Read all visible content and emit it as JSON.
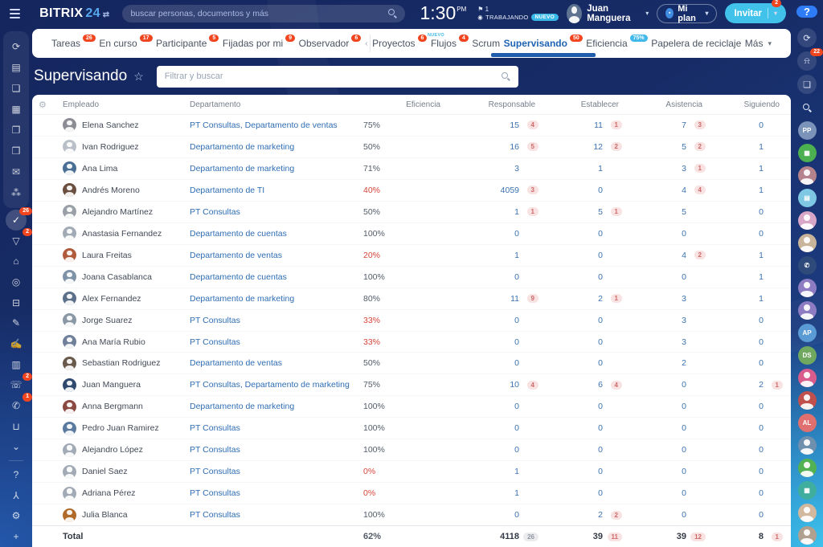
{
  "topbar": {
    "logo_main": "BITRIX",
    "logo_num": "24",
    "logo_switch": "⇄",
    "search_placeholder": "buscar personas, documentos y más",
    "time": "1:30",
    "time_suffix": "PM",
    "flag_icon": "⚑",
    "flag_count": "1",
    "status_icon": "◉",
    "status_text": "TRABAJANDO",
    "status_badge": "NUEVO",
    "user_name": "Juan Manguera",
    "plan_button": "Mi plan",
    "invite_button": "Invitar",
    "invite_badge": "2"
  },
  "colors": {
    "accent_blue": "#1f63b5",
    "badge_red": "#f0451f",
    "badge_teal": "#41b9ea",
    "invite_teal": "#41c2ea",
    "efficiency_red": "#d6453a",
    "link_blue": "#2e6db4"
  },
  "tabs": [
    {
      "label": "Tareas",
      "badge": "26",
      "badge_style": "red"
    },
    {
      "label": "En curso",
      "badge": "17",
      "badge_style": "red"
    },
    {
      "label": "Participante",
      "badge": "5",
      "badge_style": "red"
    },
    {
      "label": "Fijadas por mi",
      "badge": "9",
      "badge_style": "red"
    },
    {
      "label": "Observador",
      "badge": "6",
      "badge_style": "red",
      "chevron": "‹",
      "divider_after": true
    },
    {
      "label": "Proyectos",
      "badge": "6",
      "badge_style": "red"
    },
    {
      "label": "Flujos",
      "badge": "4",
      "badge_style": "red",
      "tag": "NUEVO"
    },
    {
      "label": "Scrum"
    },
    {
      "label": "Supervisando",
      "badge": "50",
      "badge_style": "red",
      "active": true
    },
    {
      "label": "Eficiencia",
      "badge": "75%",
      "badge_style": "teal"
    },
    {
      "label": "Papelera de reciclaje"
    },
    {
      "label": "Más",
      "caret": true
    }
  ],
  "page": {
    "title": "Supervisando",
    "star_icon": "☆",
    "filter_placeholder": "Filtrar y buscar"
  },
  "left_rail": [
    {
      "name": "pulse-icon",
      "glyph": "⟳",
      "group": true
    },
    {
      "name": "feed-icon",
      "glyph": "▤",
      "group": true
    },
    {
      "name": "messenger-icon",
      "glyph": "❏",
      "group": true
    },
    {
      "name": "calendar-icon",
      "glyph": "▦",
      "group": true
    },
    {
      "name": "documents-icon",
      "glyph": "❐",
      "group": true
    },
    {
      "name": "drive-icon",
      "glyph": "❒",
      "group": true
    },
    {
      "name": "mail-icon",
      "glyph": "✉",
      "group": true
    },
    {
      "name": "employees-icon",
      "glyph": "⁂",
      "group": true
    },
    {
      "name": "tasks-icon",
      "glyph": "✓",
      "badge": "26",
      "active": true
    },
    {
      "name": "crm-icon",
      "glyph": "▽",
      "badge": "2"
    },
    {
      "name": "market-icon",
      "glyph": "⌂"
    },
    {
      "name": "automation-icon",
      "glyph": "◎"
    },
    {
      "name": "store-cart-icon",
      "glyph": "⊟"
    },
    {
      "name": "sign-icon",
      "glyph": "✎"
    },
    {
      "name": "esign-icon",
      "glyph": "✍"
    },
    {
      "name": "analytics-icon",
      "glyph": "▥"
    },
    {
      "name": "contact-center-icon",
      "glyph": "☏",
      "badge": "2"
    },
    {
      "name": "telephony-icon",
      "glyph": "✆",
      "badge": "1"
    },
    {
      "name": "inventory-icon",
      "glyph": "⊔"
    },
    {
      "name": "collapse-icon",
      "glyph": "⌄"
    },
    {
      "name": "divider",
      "divider": true
    },
    {
      "name": "support-icon",
      "glyph": "?"
    },
    {
      "name": "sitemap-icon",
      "glyph": "⅄"
    },
    {
      "name": "settings-gear-icon",
      "glyph": "⚙"
    },
    {
      "name": "add-plus-icon",
      "glyph": "+"
    }
  ],
  "right_rail": {
    "help_label": "?",
    "bell_badge": "22",
    "tools": [
      {
        "name": "history-icon",
        "glyph": "⟳"
      },
      {
        "name": "notifications-bell-icon",
        "glyph": "⍾",
        "badge": "22"
      },
      {
        "name": "chat-icon",
        "glyph": "❏"
      },
      {
        "name": "search-icon",
        "glyph": "mag",
        "plain": true
      }
    ],
    "avatars": [
      {
        "name": "avatar-pp",
        "label": "PP",
        "bg": "#7b93b8"
      },
      {
        "name": "avatar-bot",
        "glyph": "▦",
        "bg": "#4caf50"
      },
      {
        "name": "avatar-photo-1",
        "sil": true,
        "bg": "#b5838b"
      },
      {
        "name": "avatar-card",
        "glyph": "▤",
        "bg": "#7ec8e3"
      },
      {
        "name": "avatar-photo-2",
        "sil": true,
        "bg": "#d8a7c7"
      },
      {
        "name": "avatar-photo-3",
        "sil": true,
        "bg": "#c8b49a"
      },
      {
        "name": "avatar-phone",
        "glyph": "✆",
        "bg": "#2d4a7a"
      },
      {
        "name": "group-purple-1",
        "sil": true,
        "bg": "#8d7cc2"
      },
      {
        "name": "group-purple-2",
        "sil": true,
        "bg": "#8d7cc2"
      },
      {
        "name": "avatar-ap",
        "label": "AP",
        "bg": "#5a9bd5"
      },
      {
        "name": "avatar-ds",
        "label": "DS",
        "bg": "#71a860"
      },
      {
        "name": "group-pink",
        "sil": true,
        "bg": "#d85c8c"
      },
      {
        "name": "group-red",
        "sil": true,
        "bg": "#c0504d"
      },
      {
        "name": "avatar-al",
        "label": "AL",
        "bg": "#e07070"
      },
      {
        "name": "avatar-photo-4",
        "sil": true,
        "bg": "#6f8faf"
      },
      {
        "name": "group-green",
        "sil": true,
        "bg": "#52b152"
      },
      {
        "name": "avatar-calendar",
        "glyph": "▦",
        "bg": "#3fae9e"
      },
      {
        "name": "avatar-photo-5",
        "sil": true,
        "bg": "#d3b8a0"
      },
      {
        "name": "avatar-photo-6",
        "sil": true,
        "bg": "#b0a090"
      },
      {
        "name": "avatar-photo-7",
        "sil": true,
        "bg": "#90a0b0"
      }
    ]
  },
  "table": {
    "columns": [
      "Empleado",
      "Departamento",
      "Eficiencia",
      "Responsable",
      "Establecer",
      "Asistencia",
      "Siguiendo"
    ],
    "rows": [
      {
        "name": "Elena Sanchez",
        "avatar_bg": "#8c8c94",
        "department": "PT Consultas, Departamento de ventas",
        "efficiency": "75%",
        "efficiency_red": false,
        "responsible": "15",
        "responsible_badge": "4",
        "establish": "11",
        "establish_badge": "1",
        "attendance": "7",
        "attendance_badge": "3",
        "following": "0",
        "following_badge": ""
      },
      {
        "name": "Ivan Rodriguez",
        "avatar_bg": "#b9c0c8",
        "department": "Departamento de marketing",
        "efficiency": "50%",
        "efficiency_red": false,
        "responsible": "16",
        "responsible_badge": "5",
        "establish": "12",
        "establish_badge": "2",
        "attendance": "5",
        "attendance_badge": "2",
        "following": "1",
        "following_badge": ""
      },
      {
        "name": "Ana Lima",
        "avatar_bg": "#4a6f94",
        "department": "Departamento de marketing",
        "efficiency": "71%",
        "efficiency_red": false,
        "responsible": "3",
        "responsible_badge": "",
        "establish": "1",
        "establish_badge": "",
        "attendance": "3",
        "attendance_badge": "1",
        "following": "1",
        "following_badge": ""
      },
      {
        "name": "Andrés Moreno",
        "avatar_bg": "#6b4f3f",
        "department": "Departamento de TI",
        "efficiency": "40%",
        "efficiency_red": true,
        "responsible": "4059",
        "responsible_badge": "3",
        "establish": "0",
        "establish_badge": "",
        "attendance": "4",
        "attendance_badge": "4",
        "following": "1",
        "following_badge": ""
      },
      {
        "name": "Alejandro Martínez",
        "avatar_bg": "#9aa0a8",
        "department": "PT Consultas",
        "efficiency": "50%",
        "efficiency_red": false,
        "responsible": "1",
        "responsible_badge": "1",
        "establish": "5",
        "establish_badge": "1",
        "attendance": "5",
        "attendance_badge": "",
        "following": "0",
        "following_badge": ""
      },
      {
        "name": "Anastasia Fernandez",
        "avatar_bg": "#a2abb5",
        "department": "Departamento de cuentas",
        "efficiency": "100%",
        "efficiency_red": false,
        "responsible": "0",
        "responsible_badge": "",
        "establish": "0",
        "establish_badge": "",
        "attendance": "0",
        "attendance_badge": "",
        "following": "0",
        "following_badge": ""
      },
      {
        "name": "Laura Freitas",
        "avatar_bg": "#b05c3c",
        "department": "Departamento de ventas",
        "efficiency": "20%",
        "efficiency_red": true,
        "responsible": "1",
        "responsible_badge": "",
        "establish": "0",
        "establish_badge": "",
        "attendance": "4",
        "attendance_badge": "2",
        "following": "1",
        "following_badge": ""
      },
      {
        "name": "Joana Casablanca",
        "avatar_bg": "#7f93a8",
        "department": "Departamento de cuentas",
        "efficiency": "100%",
        "efficiency_red": false,
        "responsible": "0",
        "responsible_badge": "",
        "establish": "0",
        "establish_badge": "",
        "attendance": "0",
        "attendance_badge": "",
        "following": "1",
        "following_badge": ""
      },
      {
        "name": "Alex Fernandez",
        "avatar_bg": "#5c708a",
        "department": "Departamento de marketing",
        "efficiency": "80%",
        "efficiency_red": false,
        "responsible": "11",
        "responsible_badge": "9",
        "establish": "2",
        "establish_badge": "1",
        "attendance": "3",
        "attendance_badge": "",
        "following": "1",
        "following_badge": ""
      },
      {
        "name": "Jorge Suarez",
        "avatar_bg": "#8a97a5",
        "department": "PT Consultas",
        "efficiency": "33%",
        "efficiency_red": true,
        "responsible": "0",
        "responsible_badge": "",
        "establish": "0",
        "establish_badge": "",
        "attendance": "3",
        "attendance_badge": "",
        "following": "0",
        "following_badge": ""
      },
      {
        "name": "Ana María Rubio",
        "avatar_bg": "#70809a",
        "department": "PT Consultas",
        "efficiency": "33%",
        "efficiency_red": true,
        "responsible": "0",
        "responsible_badge": "",
        "establish": "0",
        "establish_badge": "",
        "attendance": "3",
        "attendance_badge": "",
        "following": "0",
        "following_badge": ""
      },
      {
        "name": "Sebastian Rodriguez",
        "avatar_bg": "#6a5a4c",
        "department": "Departamento de ventas",
        "efficiency": "50%",
        "efficiency_red": false,
        "responsible": "0",
        "responsible_badge": "",
        "establish": "0",
        "establish_badge": "",
        "attendance": "2",
        "attendance_badge": "",
        "following": "0",
        "following_badge": ""
      },
      {
        "name": "Juan Manguera",
        "avatar_bg": "#2f4a6e",
        "department": "PT Consultas, Departamento de marketing",
        "efficiency": "75%",
        "efficiency_red": false,
        "responsible": "10",
        "responsible_badge": "4",
        "establish": "6",
        "establish_badge": "4",
        "attendance": "0",
        "attendance_badge": "",
        "following": "2",
        "following_badge": "1"
      },
      {
        "name": "Anna Bergmann",
        "avatar_bg": "#8a4a42",
        "department": "Departamento de marketing",
        "efficiency": "100%",
        "efficiency_red": false,
        "responsible": "0",
        "responsible_badge": "",
        "establish": "0",
        "establish_badge": "",
        "attendance": "0",
        "attendance_badge": "",
        "following": "0",
        "following_badge": ""
      },
      {
        "name": "Pedro Juan Ramirez",
        "avatar_bg": "#5a7aa0",
        "department": "PT Consultas",
        "efficiency": "100%",
        "efficiency_red": false,
        "responsible": "0",
        "responsible_badge": "",
        "establish": "0",
        "establish_badge": "",
        "attendance": "0",
        "attendance_badge": "",
        "following": "0",
        "following_badge": ""
      },
      {
        "name": "Alejandro López",
        "avatar_bg": "#a2abb5",
        "department": "PT Consultas",
        "efficiency": "100%",
        "efficiency_red": false,
        "responsible": "0",
        "responsible_badge": "",
        "establish": "0",
        "establish_badge": "",
        "attendance": "0",
        "attendance_badge": "",
        "following": "0",
        "following_badge": ""
      },
      {
        "name": "Daniel Saez",
        "avatar_bg": "#a2abb5",
        "department": "PT Consultas",
        "efficiency": "0%",
        "efficiency_red": true,
        "responsible": "1",
        "responsible_badge": "",
        "establish": "0",
        "establish_badge": "",
        "attendance": "0",
        "attendance_badge": "",
        "following": "0",
        "following_badge": ""
      },
      {
        "name": "Adriana Pérez",
        "avatar_bg": "#a2abb5",
        "department": "PT Consultas",
        "efficiency": "0%",
        "efficiency_red": true,
        "responsible": "1",
        "responsible_badge": "",
        "establish": "0",
        "establish_badge": "",
        "attendance": "0",
        "attendance_badge": "",
        "following": "0",
        "following_badge": ""
      },
      {
        "name": "Julia Blanca",
        "avatar_bg": "#b06a2a",
        "department": "PT Consultas",
        "efficiency": "100%",
        "efficiency_red": false,
        "responsible": "0",
        "responsible_badge": "",
        "establish": "2",
        "establish_badge": "2",
        "attendance": "0",
        "attendance_badge": "",
        "following": "0",
        "following_badge": ""
      }
    ],
    "total": {
      "label": "Total",
      "efficiency": "62%",
      "responsible": "4118",
      "responsible_badge": "26",
      "responsible_badge_gray": true,
      "establish": "39",
      "establish_badge": "11",
      "attendance": "39",
      "attendance_badge": "12",
      "following": "8",
      "following_badge": "1"
    }
  }
}
